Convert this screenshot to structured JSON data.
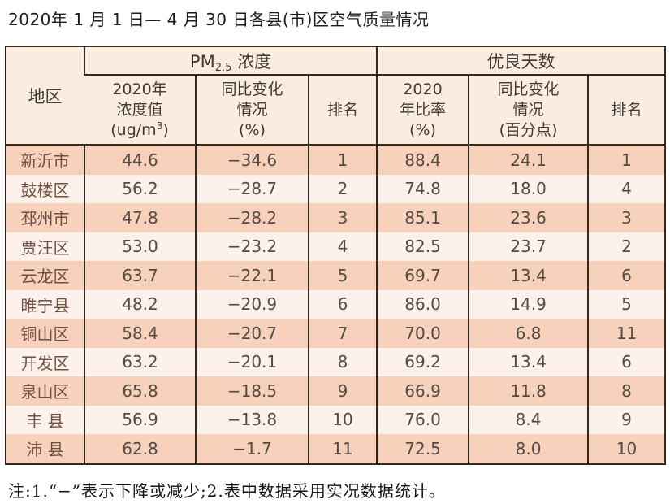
{
  "title": "2020年 1 月 1 日— 4 月 30 日各县(市)区空气质量情况",
  "table": {
    "region_header": "地区",
    "groups": {
      "pm25": {
        "prefix": "PM",
        "sub": "2.5",
        "suffix": " 浓度"
      },
      "good_days": {
        "label": "优良天数"
      }
    },
    "subheaders": {
      "conc": {
        "line1": "2020年",
        "line2": "浓度值",
        "line3_prefix": "(ug/m",
        "line3_sup": "3",
        "line3_suffix": ")"
      },
      "conc_change": {
        "line1": "同比变化",
        "line2": "情况",
        "line3": "(%)"
      },
      "rank1": "排名",
      "ratio": {
        "line1": "2020",
        "line2": "年比率",
        "line3": "(%)"
      },
      "ratio_change": {
        "line1": "同比变化",
        "line2": "情况",
        "line3": "(百分点)"
      },
      "rank2": "排名"
    },
    "rows": [
      {
        "region": "新沂市",
        "pm25": "44.6",
        "pm25_change": "−34.6",
        "pm25_rank": "1",
        "good_ratio": "88.4",
        "good_change": "24.1",
        "good_rank": "1"
      },
      {
        "region": "鼓楼区",
        "pm25": "56.2",
        "pm25_change": "−28.7",
        "pm25_rank": "2",
        "good_ratio": "74.8",
        "good_change": "18.0",
        "good_rank": "4"
      },
      {
        "region": "邳州市",
        "pm25": "47.8",
        "pm25_change": "−28.2",
        "pm25_rank": "3",
        "good_ratio": "85.1",
        "good_change": "23.6",
        "good_rank": "3"
      },
      {
        "region": "贾汪区",
        "pm25": "53.0",
        "pm25_change": "−23.2",
        "pm25_rank": "4",
        "good_ratio": "82.5",
        "good_change": "23.7",
        "good_rank": "2"
      },
      {
        "region": "云龙区",
        "pm25": "63.7",
        "pm25_change": "−22.1",
        "pm25_rank": "5",
        "good_ratio": "69.7",
        "good_change": "13.4",
        "good_rank": "6"
      },
      {
        "region": "睢宁县",
        "pm25": "48.2",
        "pm25_change": "−20.9",
        "pm25_rank": "6",
        "good_ratio": "86.0",
        "good_change": "14.9",
        "good_rank": "5"
      },
      {
        "region": "铜山区",
        "pm25": "58.4",
        "pm25_change": "−20.7",
        "pm25_rank": "7",
        "good_ratio": "70.0",
        "good_change": "6.8",
        "good_rank": "11"
      },
      {
        "region": "开发区",
        "pm25": "63.2",
        "pm25_change": "−20.1",
        "pm25_rank": "8",
        "good_ratio": "69.2",
        "good_change": "13.4",
        "good_rank": "6"
      },
      {
        "region": "泉山区",
        "pm25": "65.8",
        "pm25_change": "−18.5",
        "pm25_rank": "9",
        "good_ratio": "66.9",
        "good_change": "11.8",
        "good_rank": "8"
      },
      {
        "region": "丰 县",
        "pm25": "56.9",
        "pm25_change": "−13.8",
        "pm25_rank": "10",
        "good_ratio": "76.0",
        "good_change": "8.4",
        "good_rank": "9"
      },
      {
        "region": "沛 县",
        "pm25": "62.8",
        "pm25_change": "−1.7",
        "pm25_rank": "11",
        "good_ratio": "72.5",
        "good_change": "8.0",
        "good_rank": "10"
      }
    ]
  },
  "note": "注:1.“−”表示下降或减少;2.表中数据采用实况数据统计。",
  "colors": {
    "row_shade": "#f8d1bc",
    "row_light": "#fdf2eb",
    "header_bg": "#fbece0",
    "border": "#33291f",
    "region_text": "#6f4f45",
    "value_text": "#544b42"
  }
}
